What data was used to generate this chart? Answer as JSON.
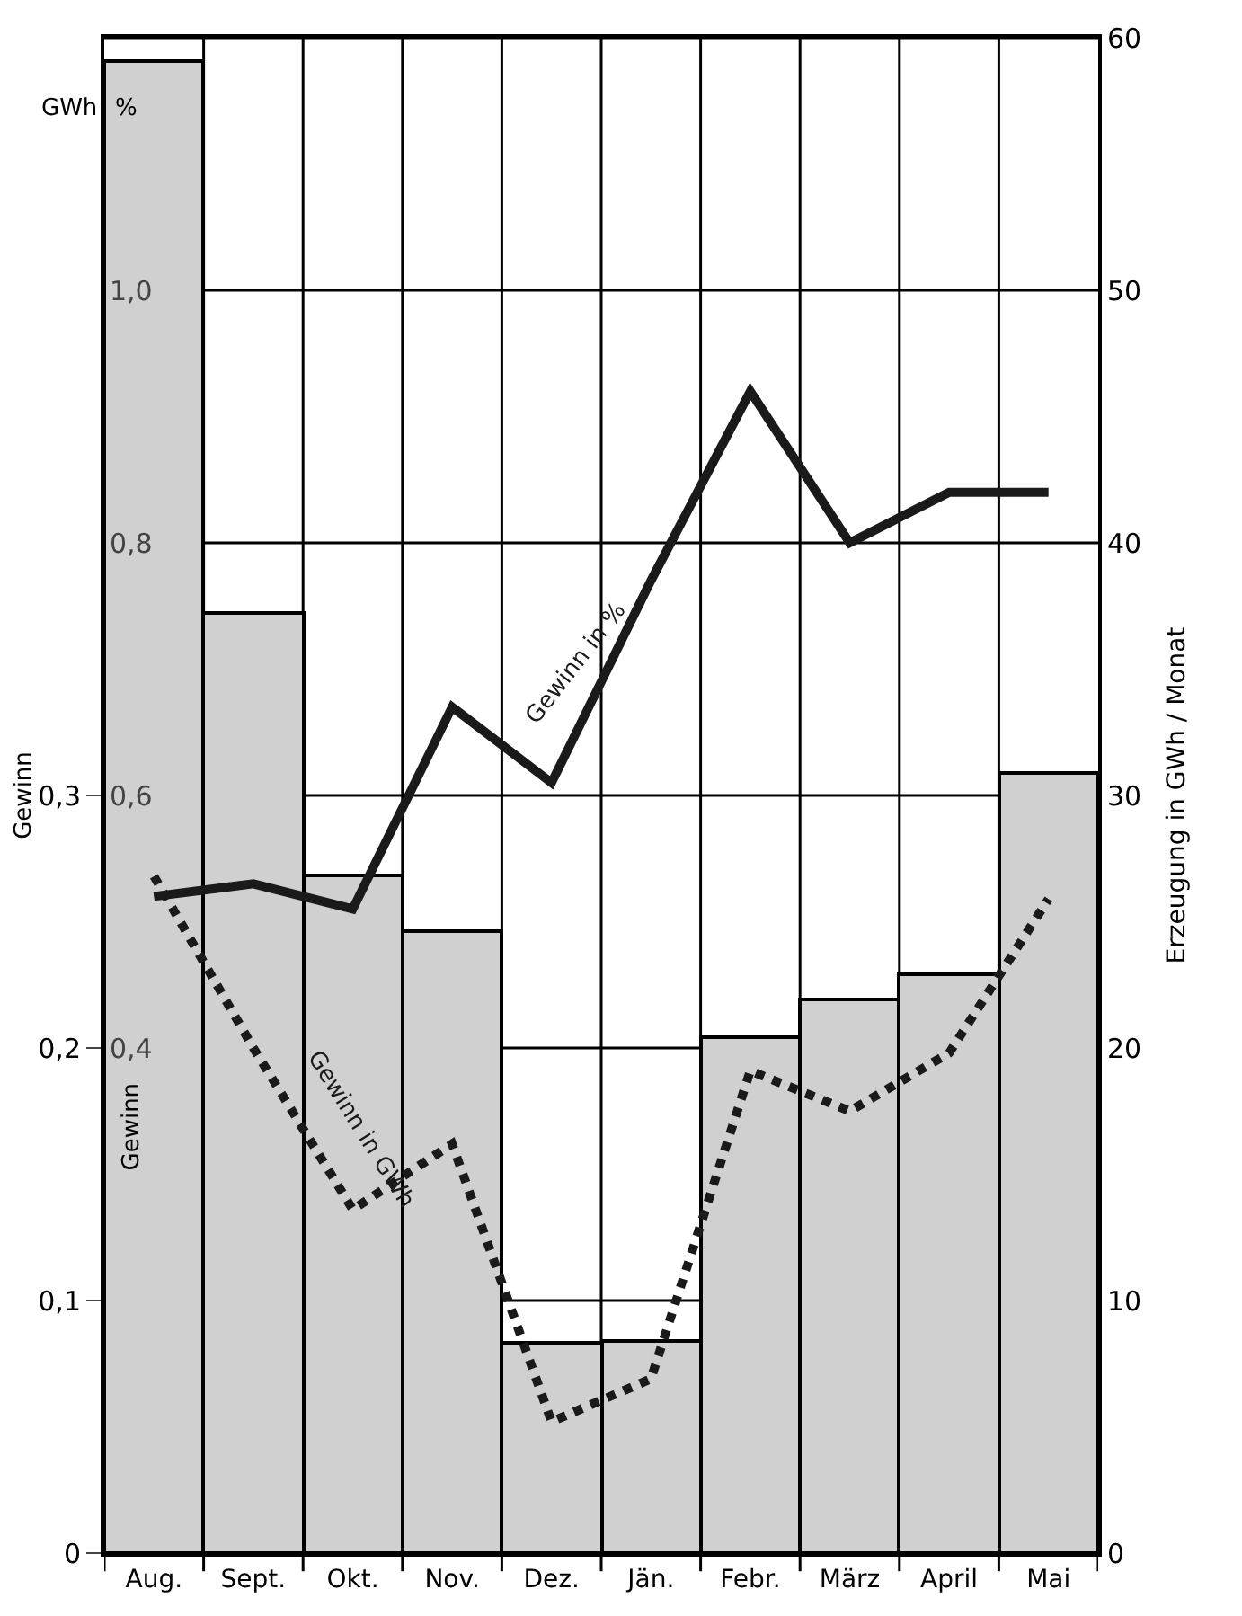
{
  "chart_data": {
    "type": "bar",
    "categories": [
      "Aug.",
      "Sept.",
      "Okt.",
      "Nov.",
      "Dez.",
      "Jän.",
      "Febr.",
      "März",
      "April",
      "Mai"
    ],
    "series": [
      {
        "axis": "y2",
        "color": "#d0d0d0",
        "values": [
          59.1,
          37.2,
          26.8,
          24.6,
          8.3,
          8.4,
          20.4,
          21.9,
          22.9,
          30.9
        ]
      },
      {
        "type": "line",
        "axis": "y3",
        "name": "Gewinn in %",
        "color": "#1a1a1a",
        "line_style": "solid",
        "values": [
          0.52,
          0.53,
          0.51,
          0.67,
          0.61,
          0.77,
          0.92,
          0.8,
          0.84,
          0.84
        ]
      },
      {
        "type": "line",
        "axis": "y",
        "name": "Gewinn in GWh",
        "color": "#1a1a1a",
        "line_style": "dotted",
        "values": [
          0.268,
          0.2,
          0.136,
          0.162,
          0.052,
          0.069,
          0.191,
          0.175,
          0.198,
          0.259
        ]
      }
    ],
    "ylabel": "Gewinn",
    "y2label": "Erzeugung in GWh / Monat",
    "ylim": [
      0,
      0.6
    ],
    "yticks": [
      0,
      {
        "value": 0.1,
        "label": "0,1"
      },
      {
        "value": 0.2,
        "label": "0,2"
      },
      {
        "value": 0.3,
        "label": "0,3"
      }
    ],
    "y2lim": [
      0,
      60
    ],
    "y2ticks": [
      0,
      10,
      20,
      30,
      40,
      50,
      60
    ],
    "y3lim": [
      0,
      1.2
    ],
    "y3ticks": [
      {
        "value": 0.4,
        "label": "0,4"
      },
      {
        "value": 0.6,
        "label": "0,6"
      },
      {
        "value": 0.8,
        "label": "0,8"
      },
      {
        "value": 1.0,
        "label": "1,0"
      }
    ],
    "annotations": [
      "GWh",
      "%",
      "Gewinn"
    ],
    "grid": true
  }
}
